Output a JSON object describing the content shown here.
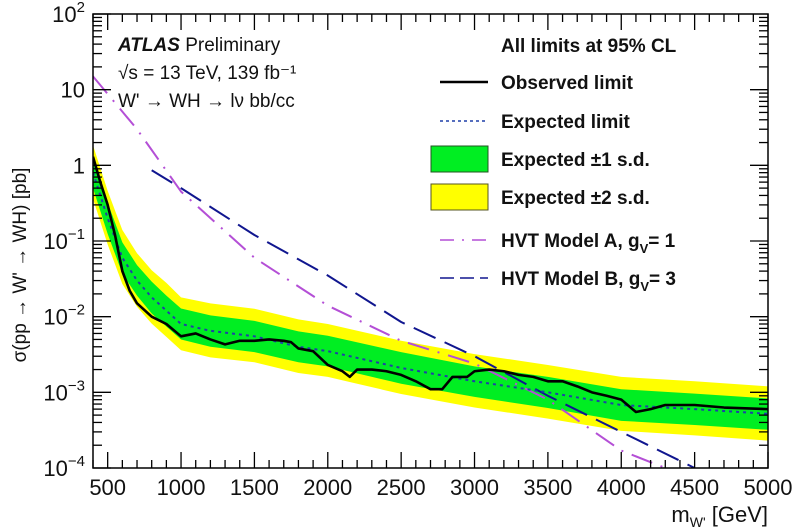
{
  "chart_data": {
    "type": "line",
    "xlabel": {
      "main": "m",
      "sub": "W'",
      "unit": " [GeV]"
    },
    "ylabel": "σ(pp → W' → WH) [pb]",
    "xlim": [
      400,
      5000
    ],
    "ylim": [
      0.0001,
      100
    ],
    "yscale": "log",
    "grid": false,
    "x_tick_labels": [
      "500",
      "1000",
      "1500",
      "2000",
      "2500",
      "3000",
      "3500",
      "4000",
      "4500",
      "5000"
    ],
    "y_tick_labels": [
      {
        "base": "10",
        "exp": "-4"
      },
      {
        "base": "10",
        "exp": "-3"
      },
      {
        "base": "10",
        "exp": "-2"
      },
      {
        "base": "10",
        "exp": "-1"
      },
      {
        "base": "1",
        "exp": ""
      },
      {
        "base": "10",
        "exp": ""
      },
      {
        "base": "10",
        "exp": "2"
      }
    ],
    "annotations": {
      "experiment": "ATLAS",
      "status": "Preliminary",
      "energy": "√s = 13 TeV, 139 fb⁻¹",
      "process": "W' → WH → lν bb/cc",
      "cl_note": "All limits at 95% CL"
    },
    "colors": {
      "observed": "#000000",
      "expected": "#1f3fa8",
      "band1": "#00ee22",
      "band2": "#ffff00",
      "hvtA": "#b44fd6",
      "hvtB": "#10168f"
    },
    "legend_placement": "top-right",
    "series": [
      {
        "name": "Observed limit",
        "style": "solid",
        "x": [
          400,
          450,
          500,
          550,
          600,
          650,
          700,
          800,
          900,
          1000,
          1100,
          1200,
          1300,
          1400,
          1500,
          1600,
          1700,
          1750,
          1800,
          1900,
          2000,
          2100,
          2150,
          2200,
          2300,
          2400,
          2500,
          2600,
          2700,
          2780,
          2850,
          2950,
          3000,
          3100,
          3200,
          3300,
          3400,
          3500,
          3600,
          3700,
          3800,
          3900,
          4000,
          4100,
          4200,
          4300,
          4500,
          4700,
          5000
        ],
        "y": [
          1.3,
          0.6,
          0.3,
          0.12,
          0.04,
          0.022,
          0.015,
          0.01,
          0.008,
          0.0055,
          0.006,
          0.005,
          0.0043,
          0.0048,
          0.0048,
          0.005,
          0.0048,
          0.0046,
          0.0038,
          0.0035,
          0.0023,
          0.0019,
          0.0016,
          0.002,
          0.002,
          0.0019,
          0.0017,
          0.0014,
          0.0011,
          0.0011,
          0.0016,
          0.0016,
          0.0019,
          0.002,
          0.0019,
          0.0017,
          0.0016,
          0.0014,
          0.0014,
          0.0012,
          0.001,
          0.0009,
          0.0008,
          0.00055,
          0.0006,
          0.00068,
          0.00068,
          0.00063,
          0.0006
        ]
      },
      {
        "name": "Expected limit",
        "style": "dotted",
        "x": [
          400,
          500,
          600,
          700,
          800,
          900,
          1000,
          1200,
          1500,
          1800,
          2000,
          2500,
          3000,
          3500,
          4000,
          4500,
          5000
        ],
        "y": [
          0.8,
          0.2,
          0.06,
          0.03,
          0.018,
          0.012,
          0.008,
          0.0065,
          0.0055,
          0.004,
          0.0035,
          0.0021,
          0.0014,
          0.001,
          0.00068,
          0.0006,
          0.00052
        ]
      },
      {
        "name": "Expected ±1 s.d.",
        "style": "band",
        "x": [
          400,
          500,
          600,
          700,
          800,
          900,
          1000,
          1200,
          1500,
          1800,
          2000,
          2500,
          3000,
          3500,
          4000,
          4500,
          5000
        ],
        "low": [
          0.5,
          0.124,
          0.037,
          0.019,
          0.011,
          0.0074,
          0.005,
          0.004,
          0.0034,
          0.0025,
          0.0022,
          0.0013,
          0.00087,
          0.00062,
          0.00042,
          0.00037,
          0.00032
        ],
        "high": [
          1.28,
          0.32,
          0.096,
          0.048,
          0.029,
          0.019,
          0.0128,
          0.0104,
          0.0088,
          0.0064,
          0.0056,
          0.0034,
          0.0022,
          0.0016,
          0.0011,
          0.00096,
          0.00083
        ]
      },
      {
        "name": "Expected ±2 s.d.",
        "style": "band",
        "x": [
          400,
          500,
          600,
          700,
          800,
          900,
          1000,
          1200,
          1500,
          1800,
          2000,
          2500,
          3000,
          3500,
          4000,
          4500,
          5000
        ],
        "low": [
          0.36,
          0.09,
          0.027,
          0.0135,
          0.0081,
          0.0054,
          0.0036,
          0.0029,
          0.0025,
          0.0018,
          0.0016,
          0.00095,
          0.00063,
          0.00045,
          0.00031,
          0.00027,
          0.00023
        ],
        "high": [
          1.84,
          0.46,
          0.14,
          0.069,
          0.041,
          0.028,
          0.018,
          0.015,
          0.0127,
          0.0092,
          0.008,
          0.0048,
          0.0032,
          0.0023,
          0.0016,
          0.0014,
          0.0012
        ]
      },
      {
        "name": "HVT Model A, g_V = 1",
        "style": "dashdot",
        "x": [
          400,
          700,
          1000,
          1500,
          2000,
          2500,
          3000,
          3500,
          4000,
          4300
        ],
        "y": [
          15,
          3,
          0.45,
          0.06,
          0.014,
          0.0048,
          0.0024,
          0.0008,
          0.00017,
          0.0001
        ]
      },
      {
        "name": "HVT Model B, g_V = 3",
        "style": "dashed",
        "x": [
          800,
          1000,
          1500,
          2000,
          2500,
          3000,
          3500,
          4000,
          4500
        ],
        "y": [
          0.86,
          0.5,
          0.12,
          0.035,
          0.0085,
          0.003,
          0.0009,
          0.0003,
          0.0001
        ]
      }
    ],
    "legend": {
      "title": "All limits at 95% CL",
      "items": [
        {
          "text": "Observed limit",
          "sub": "",
          "after": ""
        },
        {
          "text": "Expected limit",
          "sub": "",
          "after": ""
        },
        {
          "text": "Expected ±1 s.d.",
          "sub": "",
          "after": ""
        },
        {
          "text": "Expected ±2 s.d.",
          "sub": "",
          "after": ""
        },
        {
          "text": "HVT Model A, g",
          "sub": "V",
          "after": "= 1"
        },
        {
          "text": "HVT Model B, g",
          "sub": "V",
          "after": "= 3"
        }
      ]
    }
  }
}
